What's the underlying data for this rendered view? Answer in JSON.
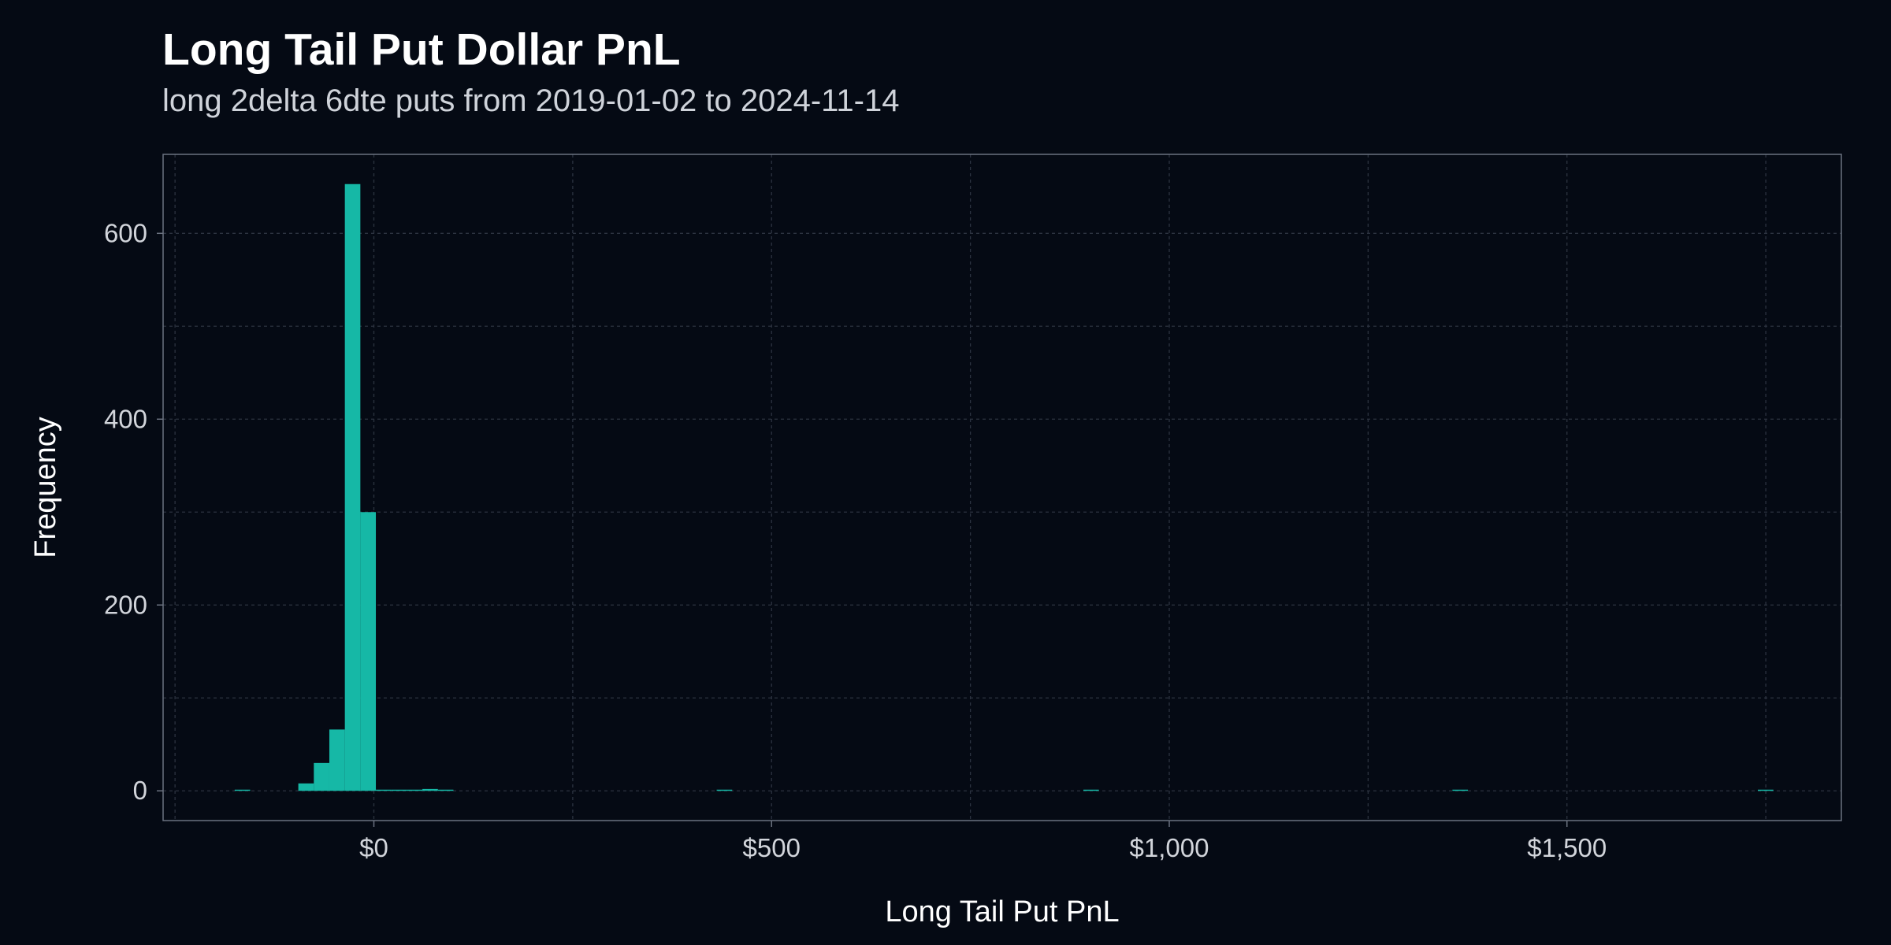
{
  "chart_data": {
    "type": "bar",
    "title": "Long Tail Put Dollar PnL",
    "subtitle": "long 2delta 6dte puts from 2019-01-02 to 2024-11-14",
    "xlabel": "Long Tail Put PnL",
    "ylabel": "Frequency",
    "x_ticks": [
      {
        "value": 0,
        "label": "$0"
      },
      {
        "value": 500,
        "label": "$500"
      },
      {
        "value": 1000,
        "label": "$1,000"
      },
      {
        "value": 1500,
        "label": "$1,500"
      }
    ],
    "y_ticks": [
      {
        "value": 0,
        "label": "0"
      },
      {
        "value": 200,
        "label": "200"
      },
      {
        "value": 400,
        "label": "400"
      },
      {
        "value": 600,
        "label": "600"
      }
    ],
    "xlim": [
      -265,
      1845
    ],
    "ylim": [
      -32,
      685
    ],
    "grid": true,
    "bin_width": 19.5,
    "bins": [
      {
        "x0": -175,
        "count": 1
      },
      {
        "x0": -95,
        "count": 8
      },
      {
        "x0": -75.5,
        "count": 30
      },
      {
        "x0": -56,
        "count": 66
      },
      {
        "x0": -36.5,
        "count": 653
      },
      {
        "x0": -17,
        "count": 300
      },
      {
        "x0": 2.5,
        "count": 1
      },
      {
        "x0": 22,
        "count": 1
      },
      {
        "x0": 41.5,
        "count": 1
      },
      {
        "x0": 61,
        "count": 2
      },
      {
        "x0": 80.5,
        "count": 1
      },
      {
        "x0": 431,
        "count": 1
      },
      {
        "x0": 892,
        "count": 1
      },
      {
        "x0": 1356,
        "count": 1
      },
      {
        "x0": 1740,
        "count": 1
      }
    ],
    "colors": {
      "bar": "#16b8a6",
      "background": "#050a14",
      "plot_border": "#6b7280",
      "grid": "#2c3340"
    }
  }
}
